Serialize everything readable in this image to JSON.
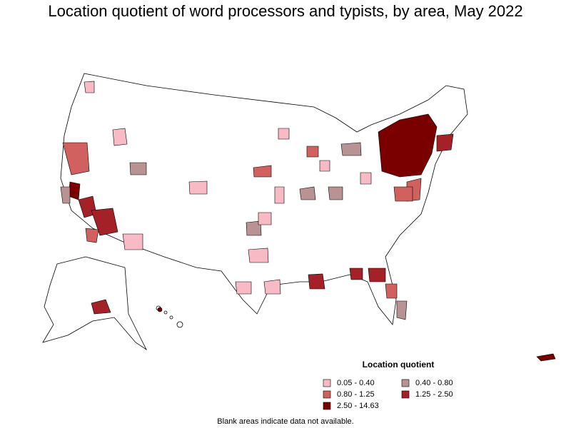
{
  "title": "Location quotient of word processors and typists, by area, May 2022",
  "legend": {
    "title": "Location quotient",
    "items": [
      {
        "label": "0.05 - 0.40",
        "color": "#f8bac4"
      },
      {
        "label": "0.40 - 0.80",
        "color": "#b89393"
      },
      {
        "label": "0.80 - 1.25",
        "color": "#d0615f"
      },
      {
        "label": "1.25 - 2.50",
        "color": "#a52128"
      },
      {
        "label": "2.50 - 14.63",
        "color": "#7a0000"
      }
    ]
  },
  "note": "Blank areas indicate data not available."
}
